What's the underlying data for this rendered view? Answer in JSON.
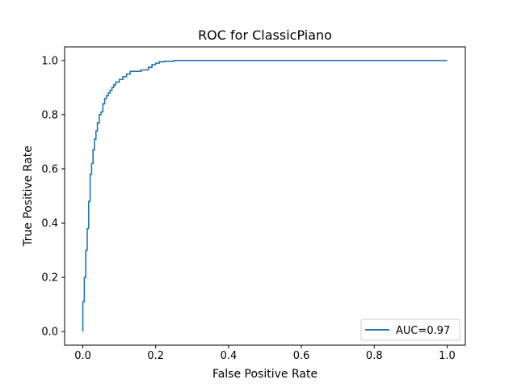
{
  "chart_data": {
    "type": "line",
    "title": "ROC for ClassicPiano",
    "xlabel": "False Positive Rate",
    "ylabel": "True Positive Rate",
    "xlim": [
      -0.05,
      1.05
    ],
    "ylim": [
      -0.05,
      1.05
    ],
    "xticks": [
      0.0,
      0.2,
      0.4,
      0.6,
      0.8,
      1.0
    ],
    "xtick_labels": [
      "0.0",
      "0.2",
      "0.4",
      "0.6",
      "0.8",
      "1.0"
    ],
    "yticks": [
      0.0,
      0.2,
      0.4,
      0.6,
      0.8,
      1.0
    ],
    "ytick_labels": [
      "0.0",
      "0.2",
      "0.4",
      "0.6",
      "0.8",
      "1.0"
    ],
    "grid": false,
    "legend_position": "lower-right",
    "series": [
      {
        "name": "AUC=0.97",
        "color": "#1f77b4",
        "x": [
          0.0,
          0.0,
          0.004,
          0.004,
          0.008,
          0.008,
          0.012,
          0.012,
          0.016,
          0.016,
          0.02,
          0.02,
          0.024,
          0.024,
          0.028,
          0.028,
          0.032,
          0.032,
          0.036,
          0.036,
          0.04,
          0.04,
          0.045,
          0.045,
          0.05,
          0.05,
          0.055,
          0.055,
          0.06,
          0.06,
          0.065,
          0.065,
          0.07,
          0.07,
          0.075,
          0.075,
          0.08,
          0.08,
          0.085,
          0.085,
          0.09,
          0.09,
          0.1,
          0.1,
          0.11,
          0.11,
          0.12,
          0.12,
          0.13,
          0.13,
          0.16,
          0.16,
          0.18,
          0.18,
          0.19,
          0.19,
          0.2,
          0.2,
          0.21,
          0.21,
          0.225,
          0.225,
          0.25,
          0.25,
          1.0
        ],
        "y": [
          0.0,
          0.11,
          0.11,
          0.2,
          0.2,
          0.3,
          0.3,
          0.38,
          0.38,
          0.48,
          0.48,
          0.58,
          0.58,
          0.62,
          0.62,
          0.67,
          0.67,
          0.71,
          0.71,
          0.74,
          0.74,
          0.77,
          0.77,
          0.8,
          0.8,
          0.81,
          0.81,
          0.84,
          0.84,
          0.86,
          0.86,
          0.87,
          0.87,
          0.88,
          0.88,
          0.89,
          0.89,
          0.9,
          0.9,
          0.91,
          0.91,
          0.92,
          0.92,
          0.93,
          0.93,
          0.94,
          0.94,
          0.95,
          0.95,
          0.96,
          0.96,
          0.965,
          0.965,
          0.975,
          0.975,
          0.985,
          0.985,
          0.99,
          0.99,
          0.995,
          0.995,
          0.997,
          0.997,
          1.0,
          1.0
        ]
      }
    ]
  }
}
